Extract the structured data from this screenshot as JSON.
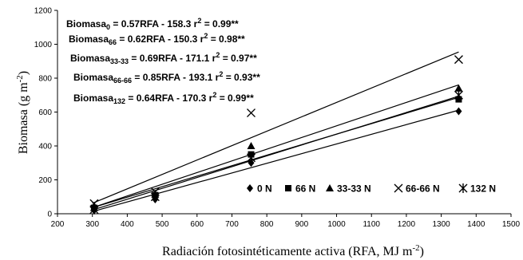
{
  "chart_data": {
    "type": "scatter",
    "xlabel": "Radiación fotosintéticamente activa (RFA, MJ m",
    "xlabel_sup": "-2",
    "xlabel_end": ")",
    "ylabel": "Biomasa (g m",
    "ylabel_sup": "-2",
    "ylabel_end": ")",
    "xlim": [
      200,
      1500
    ],
    "ylim": [
      0,
      1200
    ],
    "x_ticks": [
      200,
      300,
      400,
      500,
      600,
      700,
      800,
      900,
      1000,
      1100,
      1200,
      1300,
      1400,
      1500
    ],
    "y_ticks": [
      0,
      200,
      400,
      600,
      800,
      1000,
      1200
    ],
    "grid": false,
    "legend_position": "bottom-right",
    "series": [
      {
        "name": "0 N",
        "marker": "diamond",
        "x": [
          305,
          480,
          755,
          1350
        ],
        "y": [
          20,
          85,
          300,
          605
        ],
        "fit": {
          "slope": 0.57,
          "intercept": -158.3,
          "x_range": [
            300,
            1350
          ]
        },
        "equation": {
          "base": "Biomasa",
          "sub": "0",
          "rest": " = 0.57RFA - 158.3 r",
          "sup": "2",
          "end": " = 0.99**"
        }
      },
      {
        "name": "66 N",
        "marker": "square",
        "x": [
          305,
          480,
          755,
          1350
        ],
        "y": [
          35,
          110,
          350,
          675
        ],
        "fit": {
          "slope": 0.62,
          "intercept": -150.3,
          "x_range": [
            300,
            1350
          ]
        },
        "equation": {
          "base": "Biomasa",
          "sub": "66",
          "rest": " = 0.62RFA - 150.3 r",
          "sup": "2",
          "end": " = 0.98**"
        }
      },
      {
        "name": "33-33 N",
        "marker": "triangle",
        "x": [
          305,
          480,
          755,
          1350
        ],
        "y": [
          35,
          115,
          400,
          740
        ],
        "fit": {
          "slope": 0.69,
          "intercept": -171.1,
          "x_range": [
            300,
            1350
          ]
        },
        "equation": {
          "base": "Biomasa",
          "sub": "33-33",
          "rest": " = 0.69RFA - 171.1 r",
          "sup": "2",
          "end": " = 0.97**"
        }
      },
      {
        "name": "66-66 N",
        "marker": "x",
        "x": [
          305,
          480,
          755,
          1350
        ],
        "y": [
          60,
          130,
          595,
          910
        ],
        "fit": {
          "slope": 0.85,
          "intercept": -193.1,
          "x_range": [
            300,
            1350
          ]
        },
        "equation": {
          "base": "Biomasa",
          "sub": "66-66",
          "rest": " = 0.85RFA - 193.1 r",
          "sup": "2",
          "end": " = 0.93**"
        }
      },
      {
        "name": "132 N",
        "marker": "star",
        "x": [
          305,
          480,
          755,
          1350
        ],
        "y": [
          25,
          100,
          330,
          700
        ],
        "fit": {
          "slope": 0.64,
          "intercept": -170.3,
          "x_range": [
            300,
            1350
          ]
        },
        "equation": {
          "base": "Biomasa",
          "sub": "132",
          "rest": " = 0.64RFA - 170.3 r",
          "sup": "2",
          "end": " = 0.99**"
        }
      }
    ]
  }
}
